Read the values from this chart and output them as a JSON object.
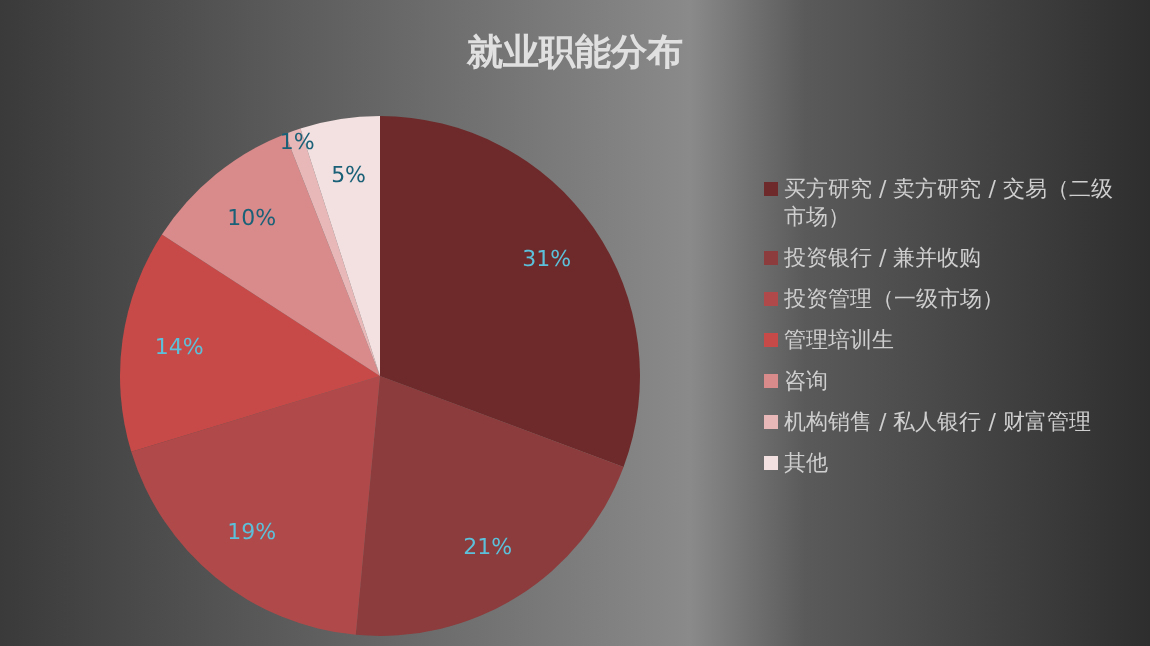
{
  "chart_data": {
    "type": "pie",
    "title": "就业职能分布",
    "categories": [
      "买方研究 / 卖方研究 / 交易（二级市场）",
      "投资银行 / 兼并收购",
      "投资管理（一级市场）",
      "管理培训生",
      "咨询",
      "机构销售 / 私人银行 / 财富管理",
      "其他"
    ],
    "values": [
      31,
      21,
      19,
      14,
      10,
      1,
      5
    ],
    "value_labels": [
      "31%",
      "21%",
      "19%",
      "14%",
      "10%",
      "1%",
      "5%"
    ],
    "colors": [
      "#6e2a2a",
      "#8c3c3c",
      "#b04a4a",
      "#c84a48",
      "#d98a8a",
      "#e8b8b8",
      "#f3e0e0"
    ],
    "legend": "right"
  }
}
